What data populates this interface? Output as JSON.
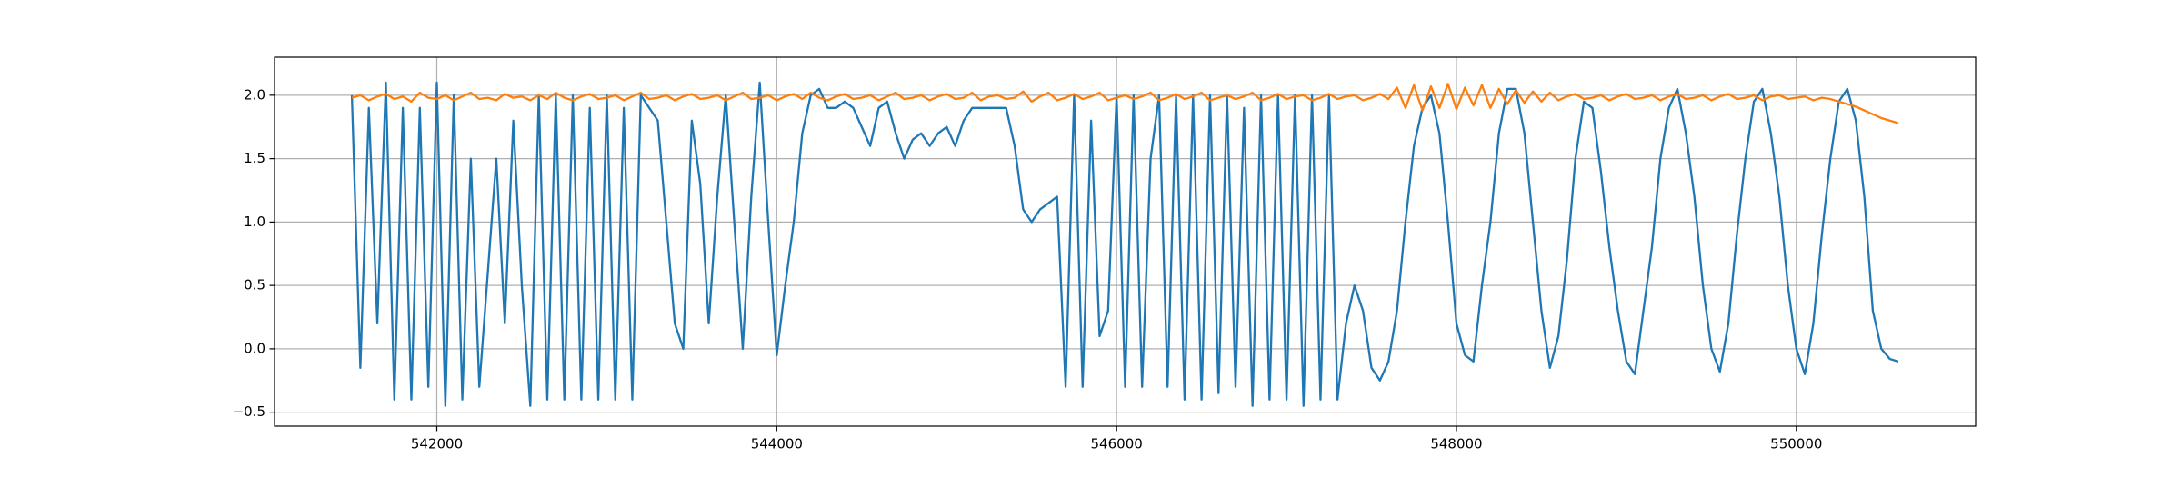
{
  "chart_data": {
    "type": "line",
    "x": [
      541500,
      541550,
      541600,
      541650,
      541700,
      541750,
      541800,
      541850,
      541900,
      541950,
      542000,
      542050,
      542100,
      542150,
      542200,
      542250,
      542300,
      542350,
      542400,
      542450,
      542500,
      542550,
      542600,
      542650,
      542700,
      542750,
      542800,
      542850,
      542900,
      542950,
      543000,
      543050,
      543100,
      543150,
      543200,
      543250,
      543300,
      543350,
      543400,
      543450,
      543500,
      543550,
      543600,
      543650,
      543700,
      543750,
      543800,
      543850,
      543900,
      543950,
      544000,
      544050,
      544100,
      544150,
      544200,
      544250,
      544300,
      544350,
      544400,
      544450,
      544500,
      544550,
      544600,
      544650,
      544700,
      544750,
      544800,
      544850,
      544900,
      544950,
      545000,
      545050,
      545100,
      545150,
      545200,
      545250,
      545300,
      545350,
      545400,
      545450,
      545500,
      545550,
      545600,
      545650,
      545700,
      545750,
      545800,
      545850,
      545900,
      545950,
      546000,
      546050,
      546100,
      546150,
      546200,
      546250,
      546300,
      546350,
      546400,
      546450,
      546500,
      546550,
      546600,
      546650,
      546700,
      546750,
      546800,
      546850,
      546900,
      546950,
      547000,
      547050,
      547100,
      547150,
      547200,
      547250,
      547300,
      547350,
      547400,
      547450,
      547500,
      547550,
      547600,
      547650,
      547700,
      547750,
      547800,
      547850,
      547900,
      547950,
      548000,
      548050,
      548100,
      548150,
      548200,
      548250,
      548300,
      548350,
      548400,
      548450,
      548500,
      548550,
      548600,
      548650,
      548700,
      548750,
      548800,
      548850,
      548900,
      548950,
      549000,
      549050,
      549100,
      549150,
      549200,
      549250,
      549300,
      549350,
      549400,
      549450,
      549500,
      549550,
      549600,
      549650,
      549700,
      549750,
      549800,
      549850,
      549900,
      549950,
      550000,
      550050,
      550100,
      550150,
      550200,
      550250,
      550300,
      550350,
      550400,
      550450,
      550500,
      550550,
      550600
    ],
    "series": [
      {
        "color": "#1f77b4",
        "values": [
          2.0,
          -0.15,
          1.9,
          0.2,
          2.1,
          -0.4,
          1.9,
          -0.4,
          1.9,
          -0.3,
          2.1,
          -0.45,
          2.0,
          -0.4,
          1.5,
          -0.3,
          0.6,
          1.5,
          0.2,
          1.8,
          0.5,
          -0.45,
          2.0,
          -0.4,
          2.0,
          -0.4,
          2.0,
          -0.4,
          1.9,
          -0.4,
          2.0,
          -0.4,
          1.9,
          -0.4,
          2.0,
          1.9,
          1.8,
          1.0,
          0.2,
          0.0,
          1.8,
          1.3,
          0.2,
          1.2,
          2.0,
          1.0,
          0.0,
          1.2,
          2.1,
          1.0,
          -0.05,
          0.5,
          1.0,
          1.7,
          2.0,
          2.05,
          1.9,
          1.9,
          1.95,
          1.9,
          1.75,
          1.6,
          1.9,
          1.95,
          1.7,
          1.5,
          1.65,
          1.7,
          1.6,
          1.7,
          1.75,
          1.6,
          1.8,
          1.9,
          1.9,
          1.9,
          1.9,
          1.9,
          1.6,
          1.1,
          1.0,
          1.1,
          1.15,
          1.2,
          -0.3,
          2.0,
          -0.3,
          1.8,
          0.1,
          0.3,
          2.0,
          -0.3,
          2.0,
          -0.3,
          1.5,
          2.0,
          -0.3,
          2.0,
          -0.4,
          2.0,
          -0.4,
          2.0,
          -0.35,
          2.0,
          -0.3,
          1.9,
          -0.45,
          2.0,
          -0.4,
          2.0,
          -0.4,
          2.0,
          -0.45,
          2.0,
          -0.4,
          2.0,
          -0.4,
          0.2,
          0.5,
          0.3,
          -0.15,
          -0.25,
          -0.1,
          0.3,
          1.0,
          1.6,
          1.9,
          2.0,
          1.7,
          1.0,
          0.2,
          -0.05,
          -0.1,
          0.5,
          1.0,
          1.7,
          2.05,
          2.05,
          1.7,
          1.0,
          0.3,
          -0.15,
          0.1,
          0.7,
          1.5,
          1.95,
          1.9,
          1.4,
          0.8,
          0.3,
          -0.1,
          -0.2,
          0.3,
          0.8,
          1.5,
          1.9,
          2.05,
          1.7,
          1.2,
          0.5,
          0.0,
          -0.18,
          0.2,
          0.9,
          1.5,
          1.95,
          2.05,
          1.7,
          1.2,
          0.5,
          0.0,
          -0.2,
          0.2,
          0.9,
          1.5,
          1.95,
          2.05,
          1.8,
          1.2,
          0.3,
          0.0,
          -0.08,
          -0.1
        ]
      },
      {
        "color": "#ff7f0e",
        "values": [
          1.98,
          2.0,
          1.96,
          1.99,
          2.01,
          1.97,
          1.99,
          1.95,
          2.02,
          1.98,
          1.97,
          2.0,
          1.96,
          1.99,
          2.02,
          1.97,
          1.98,
          1.96,
          2.01,
          1.98,
          1.99,
          1.96,
          2.0,
          1.97,
          2.02,
          1.98,
          1.96,
          1.99,
          2.01,
          1.97,
          1.98,
          2.0,
          1.96,
          1.99,
          2.02,
          1.97,
          1.98,
          2.0,
          1.96,
          1.99,
          2.01,
          1.97,
          1.98,
          2.0,
          1.96,
          1.99,
          2.02,
          1.97,
          1.98,
          2.0,
          1.96,
          1.99,
          2.01,
          1.97,
          2.02,
          1.98,
          1.96,
          1.99,
          2.01,
          1.97,
          1.98,
          2.0,
          1.96,
          1.99,
          2.02,
          1.97,
          1.98,
          2.0,
          1.96,
          1.99,
          2.01,
          1.97,
          1.98,
          2.02,
          1.96,
          1.99,
          2.0,
          1.97,
          1.98,
          2.03,
          1.95,
          1.99,
          2.02,
          1.96,
          1.98,
          2.01,
          1.97,
          1.99,
          2.02,
          1.96,
          1.98,
          2.0,
          1.97,
          1.99,
          2.02,
          1.96,
          1.98,
          2.01,
          1.97,
          1.99,
          2.02,
          1.96,
          1.98,
          2.0,
          1.97,
          1.99,
          2.02,
          1.96,
          1.98,
          2.01,
          1.97,
          1.99,
          2.0,
          1.96,
          1.98,
          2.01,
          1.97,
          1.99,
          2.0,
          1.96,
          1.98,
          2.01,
          1.97,
          2.06,
          1.9,
          2.08,
          1.88,
          2.07,
          1.9,
          2.09,
          1.89,
          2.06,
          1.92,
          2.08,
          1.9,
          2.05,
          1.93,
          2.04,
          1.94,
          2.03,
          1.95,
          2.02,
          1.96,
          1.99,
          2.01,
          1.97,
          1.98,
          2.0,
          1.96,
          1.99,
          2.01,
          1.97,
          1.98,
          2.0,
          1.96,
          1.99,
          2.01,
          1.97,
          1.98,
          2.0,
          1.96,
          1.99,
          2.01,
          1.97,
          1.98,
          2.0,
          1.96,
          1.99,
          2.0,
          1.97,
          1.98,
          1.99,
          1.96,
          1.98,
          1.97,
          1.95,
          1.93,
          1.91,
          1.88,
          1.85,
          1.82,
          1.8,
          1.78
        ]
      }
    ],
    "xlim": [
      541045,
      551055
    ],
    "xticks": [
      542000,
      544000,
      546000,
      548000,
      550000
    ],
    "ylim": [
      -0.61,
      2.3
    ],
    "yticks": [
      {
        "value": -0.5,
        "label": "−0.5"
      },
      {
        "value": 0,
        "label": "0.0"
      },
      0.5,
      {
        "value": 1,
        "label": "1.0"
      },
      1.5,
      {
        "value": 2,
        "label": "2.0"
      }
    ],
    "grid": true
  }
}
